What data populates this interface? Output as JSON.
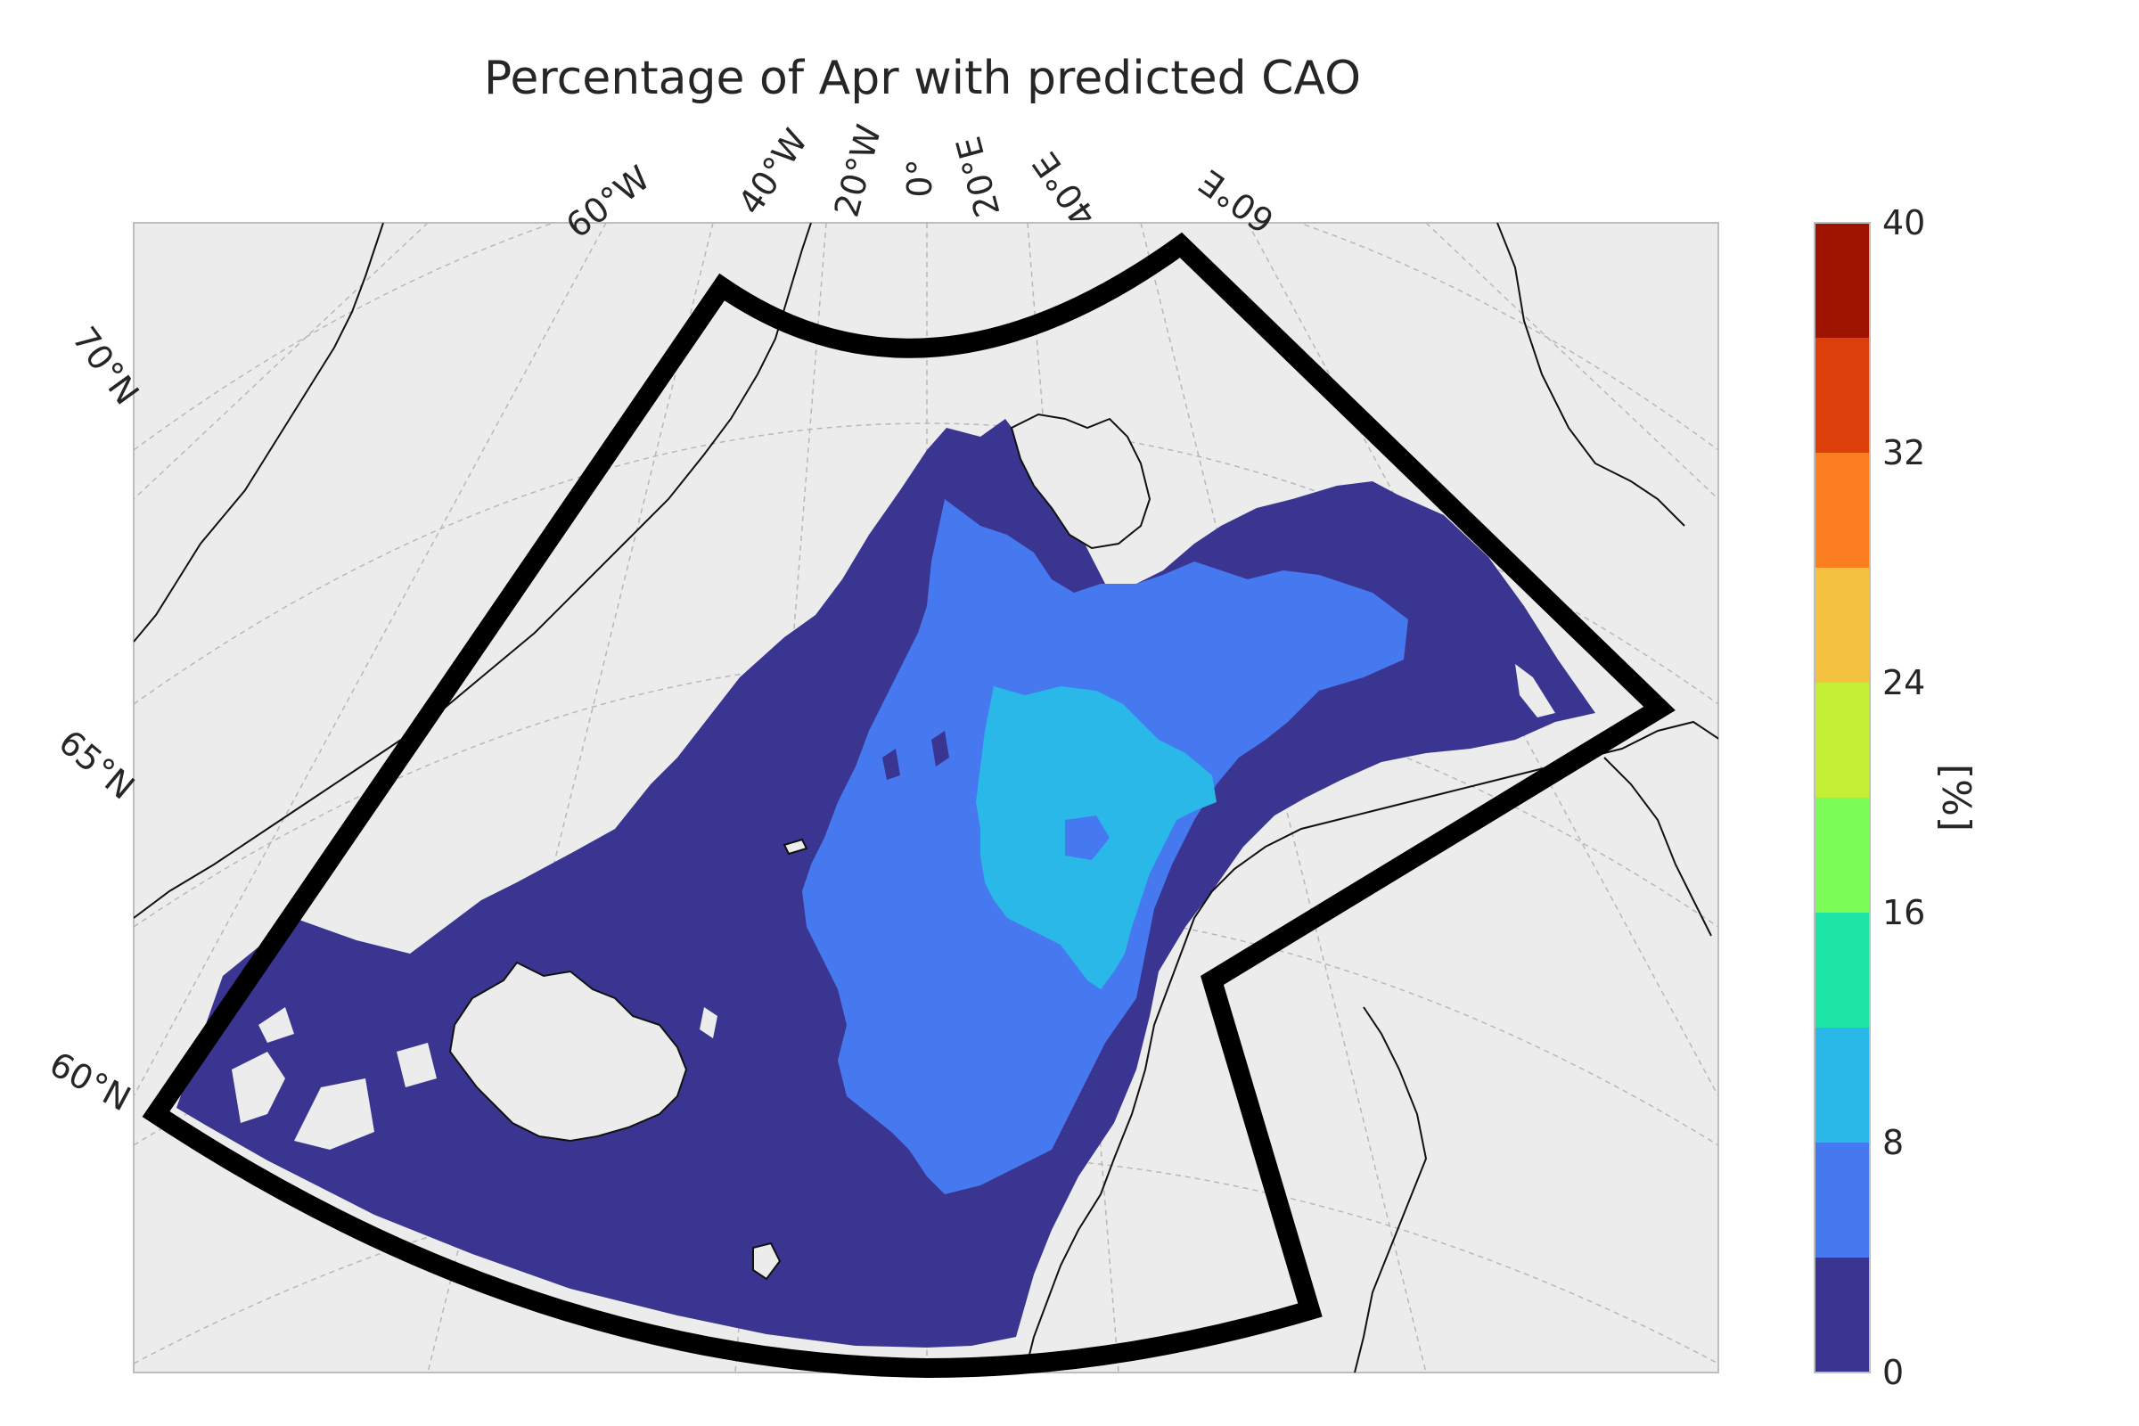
{
  "title": "Percentage of Apr with predicted CAO",
  "longitude_labels": [
    "60°W",
    "40°W",
    "20°W",
    "0°",
    "20°E",
    "40°E",
    "60°E"
  ],
  "latitude_labels": [
    "70°N",
    "65°N",
    "60°N"
  ],
  "colorbar": {
    "unit_label": "[%]",
    "ticks": [
      "0",
      "8",
      "16",
      "24",
      "32",
      "40"
    ],
    "levels": [
      0,
      4,
      8,
      12,
      16,
      20,
      24,
      28,
      32,
      36,
      40
    ],
    "colors": [
      "#3b3592",
      "#4679ef",
      "#2ab8e8",
      "#1ce5a6",
      "#7bfc56",
      "#c4ef34",
      "#f4c23e",
      "#fb7e21",
      "#dd3f0a",
      "#9f1400"
    ]
  },
  "colors": {
    "land_background": "#ececec",
    "region_outline": "#000000",
    "coastline": "#111111",
    "gridline": "#b8b8b8"
  },
  "legend": "none",
  "grid": true
}
